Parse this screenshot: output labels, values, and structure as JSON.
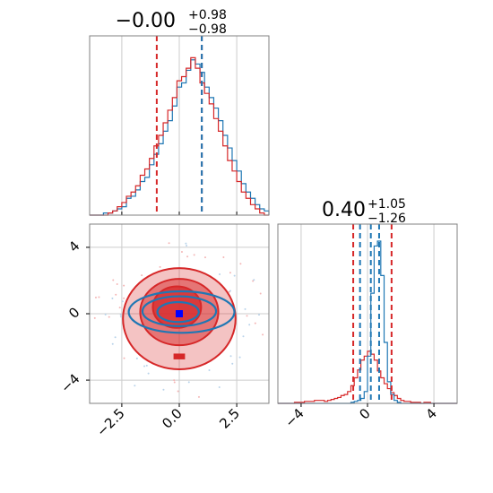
{
  "colors": {
    "red": "#d62728",
    "blue": "#1f77b4",
    "grid": "#cccccc",
    "frame": "#808080",
    "marker": "#0000ff"
  },
  "chart_data": [
    {
      "type": "histogram",
      "panel": "top-left",
      "title": {
        "main": "−0.00",
        "sup": "+0.98",
        "sub": "−0.98"
      },
      "xlim": [
        -3.9,
        3.9
      ],
      "grid": true,
      "bin_edges_start": -3.9,
      "bin_width": 0.2,
      "series": [
        {
          "color": "blue",
          "counts": [
            0,
            0,
            0,
            1,
            1,
            2,
            3,
            4,
            8,
            9,
            12,
            16,
            18,
            24,
            29,
            34,
            40,
            45,
            52,
            61,
            63,
            69,
            74,
            72,
            68,
            61,
            56,
            51,
            45,
            38,
            32,
            26,
            21,
            15,
            11,
            8,
            5,
            3,
            2
          ]
        },
        {
          "color": "red",
          "counts": [
            0,
            0,
            0,
            0,
            1,
            2,
            4,
            6,
            9,
            11,
            14,
            19,
            22,
            27,
            33,
            38,
            44,
            50,
            56,
            64,
            66,
            70,
            75,
            70,
            63,
            58,
            53,
            46,
            40,
            33,
            26,
            21,
            16,
            11,
            8,
            5,
            3,
            1,
            0
          ]
        }
      ],
      "quantile_lines": [
        {
          "x": -0.98,
          "color": "red"
        },
        {
          "x": 0.98,
          "color": "red"
        },
        {
          "x": 0.98,
          "color": "blue"
        }
      ],
      "ymax": 82
    },
    {
      "type": "contour",
      "panel": "bottom-left",
      "xlim": [
        -3.9,
        3.9
      ],
      "ylim": [
        -5.4,
        5.4
      ],
      "xticks": [
        "−2.5",
        "0.0",
        "2.5"
      ],
      "xtick_values": [
        -2.5,
        0,
        2.5
      ],
      "yticks": [
        "4",
        "0",
        "−4"
      ],
      "ytick_values": [
        4,
        0,
        -4
      ],
      "grid": true,
      "truth_point": {
        "x": 0.0,
        "y": 0.0,
        "color": "blue"
      },
      "red_levels": [
        {
          "rx": 2.45,
          "ry": 3.05,
          "cx": 0.0,
          "cy": -0.3,
          "opacity": 0.28
        },
        {
          "rx": 1.7,
          "ry": 2.0,
          "cx": 0.0,
          "cy": 0.1,
          "opacity": 0.5
        },
        {
          "rx": 1.05,
          "ry": 1.25,
          "cx": -0.1,
          "cy": 0.4,
          "opacity": 0.75
        }
      ],
      "blue_levels": [
        {
          "rx": 2.3,
          "ry": 1.25,
          "cx": 0.1,
          "cy": 0.1
        },
        {
          "rx": 1.6,
          "ry": 0.9,
          "cx": 0.0,
          "cy": 0.15
        },
        {
          "rx": 0.9,
          "ry": 0.6,
          "cx": -0.05,
          "cy": 0.1
        }
      ]
    },
    {
      "type": "histogram",
      "panel": "bottom-right",
      "title": {
        "main": "0.40",
        "sup": "+1.05",
        "sub": "−1.26"
      },
      "xlim": [
        -5.4,
        5.4
      ],
      "xticks": [
        "−4",
        "0",
        "4"
      ],
      "xtick_values": [
        -4,
        0,
        4
      ],
      "grid": true,
      "bin_edges_start": -5.4,
      "bin_width": 0.2,
      "series": [
        {
          "color": "red",
          "counts": [
            0,
            0,
            0,
            0,
            0,
            1,
            1,
            1,
            2,
            2,
            2,
            3,
            3,
            3,
            2,
            3,
            4,
            5,
            6,
            8,
            9,
            12,
            18,
            26,
            34,
            44,
            48,
            53,
            50,
            44,
            33,
            26,
            20,
            15,
            11,
            8,
            5,
            3,
            2,
            2,
            1,
            1,
            1,
            0,
            1,
            1,
            0,
            0,
            0,
            0,
            0,
            0,
            0,
            0
          ]
        },
        {
          "color": "blue",
          "counts": [
            0,
            0,
            0,
            0,
            0,
            0,
            0,
            0,
            0,
            0,
            0,
            0,
            0,
            0,
            0,
            0,
            0,
            0,
            0,
            0,
            0,
            0,
            1,
            2,
            3,
            5,
            12,
            48,
            112,
            160,
            165,
            130,
            62,
            22,
            9,
            3,
            1,
            0,
            0,
            0,
            0,
            0,
            0,
            0,
            0,
            0,
            0,
            0,
            0,
            0,
            0,
            0,
            0,
            0
          ]
        }
      ],
      "quantile_lines": [
        {
          "x": -0.86,
          "color": "red"
        },
        {
          "x": 1.45,
          "color": "red"
        },
        {
          "x": -0.45,
          "color": "blue"
        },
        {
          "x": 0.2,
          "color": "blue"
        },
        {
          "x": 0.7,
          "color": "blue"
        }
      ],
      "ymax": 175
    }
  ]
}
